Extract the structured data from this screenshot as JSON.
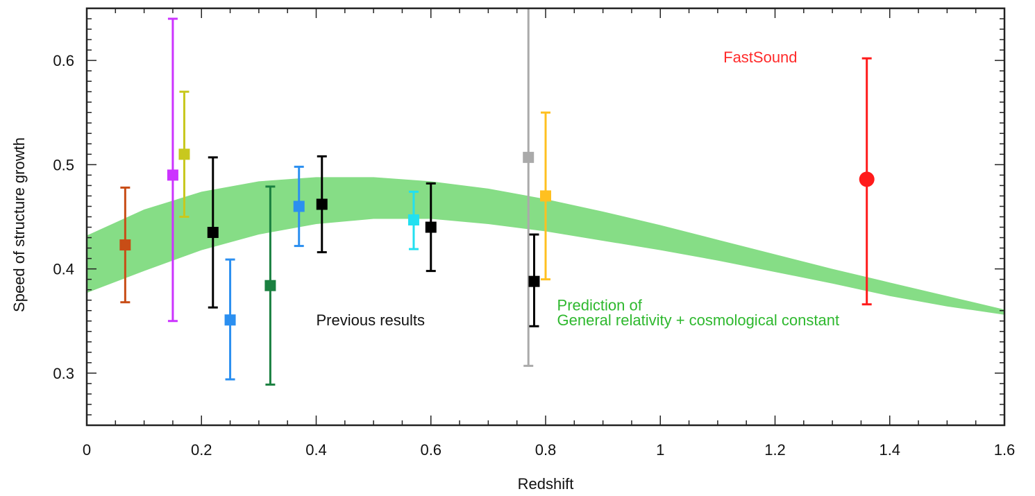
{
  "chart_data": {
    "type": "scatter",
    "title": "",
    "xlabel": "Redshift",
    "ylabel": "Speed of structure growth",
    "xlim": [
      0,
      1.6
    ],
    "ylim": [
      0.25,
      0.65
    ],
    "xticks": [
      "0",
      "0.2",
      "0.4",
      "0.6",
      "0.8",
      "1",
      "1.2",
      "1.4",
      "1.6"
    ],
    "yticks": [
      "0.3",
      "0.4",
      "0.5",
      "0.6"
    ],
    "grid": false,
    "band": {
      "color": "#86dd86",
      "x": [
        0,
        0.1,
        0.2,
        0.3,
        0.4,
        0.5,
        0.6,
        0.7,
        0.8,
        0.9,
        1.0,
        1.1,
        1.2,
        1.3,
        1.4,
        1.5,
        1.6
      ],
      "lower": [
        0.377,
        0.398,
        0.418,
        0.433,
        0.443,
        0.448,
        0.448,
        0.443,
        0.436,
        0.427,
        0.418,
        0.408,
        0.397,
        0.386,
        0.374,
        0.364,
        0.356
      ],
      "upper": [
        0.432,
        0.457,
        0.474,
        0.484,
        0.488,
        0.488,
        0.484,
        0.477,
        0.467,
        0.455,
        0.442,
        0.428,
        0.414,
        0.4,
        0.387,
        0.374,
        0.361
      ]
    },
    "points": [
      {
        "x": 0.067,
        "y": 0.423,
        "ylo": 0.368,
        "yhi": 0.478,
        "color": "#c84d16",
        "marker": "square"
      },
      {
        "x": 0.15,
        "y": 0.49,
        "ylo": 0.35,
        "yhi": 0.64,
        "color": "#cc33ff",
        "marker": "square"
      },
      {
        "x": 0.17,
        "y": 0.51,
        "ylo": 0.45,
        "yhi": 0.57,
        "color": "#c8c81e",
        "marker": "square"
      },
      {
        "x": 0.22,
        "y": 0.435,
        "ylo": 0.363,
        "yhi": 0.507,
        "color": "#000000",
        "marker": "square"
      },
      {
        "x": 0.25,
        "y": 0.351,
        "ylo": 0.294,
        "yhi": 0.409,
        "color": "#2b8ff0",
        "marker": "square"
      },
      {
        "x": 0.32,
        "y": 0.384,
        "ylo": 0.289,
        "yhi": 0.479,
        "color": "#1a8040",
        "marker": "square"
      },
      {
        "x": 0.37,
        "y": 0.46,
        "ylo": 0.422,
        "yhi": 0.498,
        "color": "#2b8ff0",
        "marker": "square"
      },
      {
        "x": 0.41,
        "y": 0.462,
        "ylo": 0.416,
        "yhi": 0.508,
        "color": "#000000",
        "marker": "square"
      },
      {
        "x": 0.57,
        "y": 0.447,
        "ylo": 0.419,
        "yhi": 0.474,
        "color": "#22e0f0",
        "marker": "square"
      },
      {
        "x": 0.6,
        "y": 0.44,
        "ylo": 0.398,
        "yhi": 0.482,
        "color": "#000000",
        "marker": "square"
      },
      {
        "x": 0.77,
        "y": 0.507,
        "ylo": 0.307,
        "yhi": 0.707,
        "color": "#aaaaaa",
        "marker": "square"
      },
      {
        "x": 0.78,
        "y": 0.388,
        "ylo": 0.345,
        "yhi": 0.433,
        "color": "#000000",
        "marker": "square"
      },
      {
        "x": 0.8,
        "y": 0.47,
        "ylo": 0.39,
        "yhi": 0.55,
        "color": "#ffc020",
        "marker": "square"
      },
      {
        "x": 1.36,
        "y": 0.486,
        "ylo": 0.366,
        "yhi": 0.602,
        "color": "#ff1a1a",
        "marker": "circle"
      }
    ],
    "annotations": [
      {
        "text": "FastSound",
        "x": 1.11,
        "y": 0.598,
        "color": "#ff2a2a"
      },
      {
        "text": "Previous results",
        "x": 0.4,
        "y": 0.346,
        "color": "#111111"
      },
      {
        "text": "Prediction of",
        "x": 0.82,
        "y": 0.36,
        "color": "#2eb82e"
      },
      {
        "text": "General relativity + cosmological constant",
        "x": 0.82,
        "y": 0.346,
        "color": "#2eb82e"
      }
    ]
  }
}
